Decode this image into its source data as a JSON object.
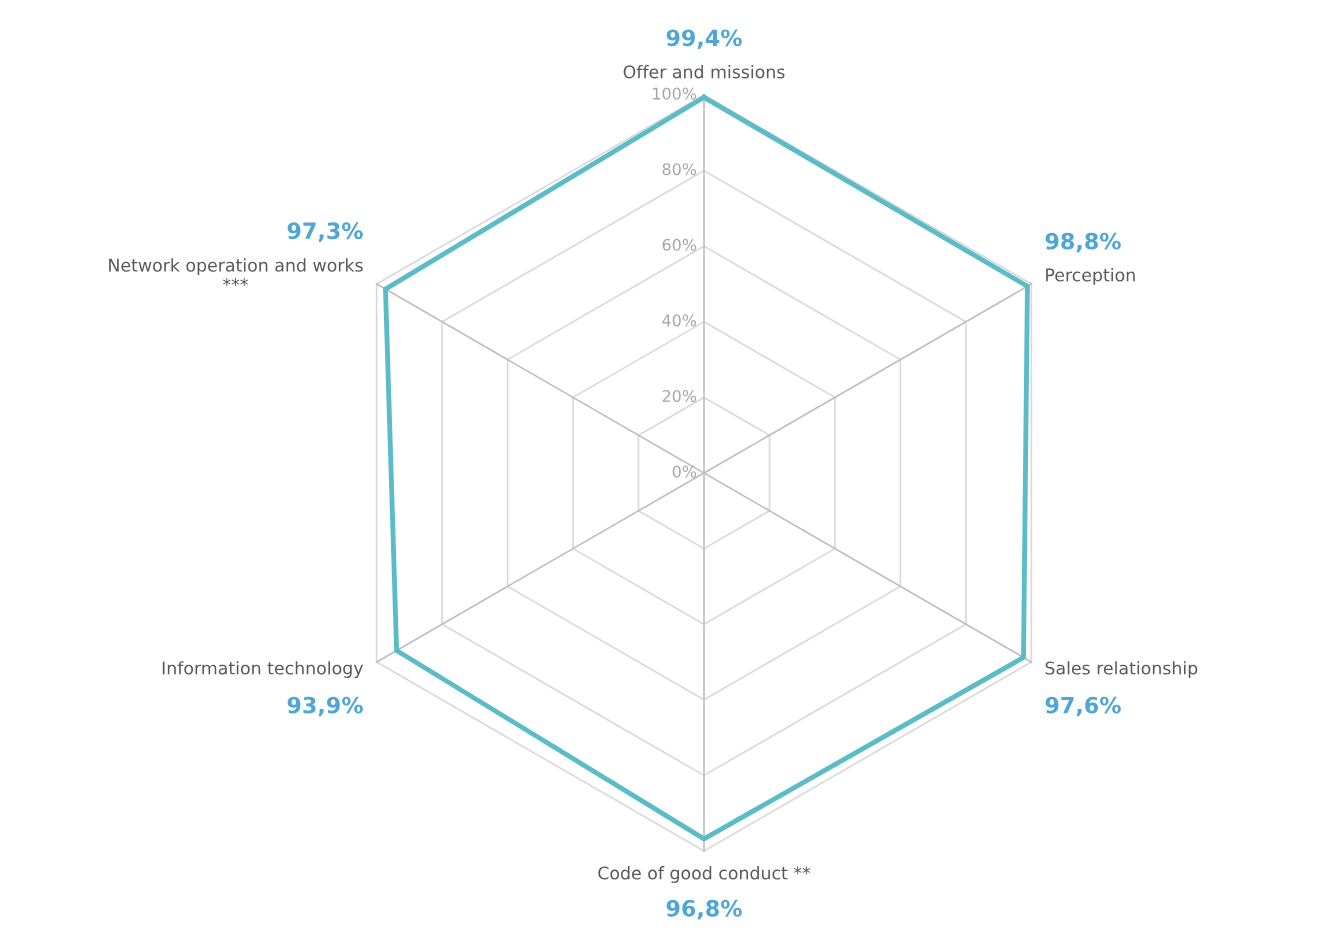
{
  "chart_data": {
    "type": "radar",
    "categories": [
      "Offer and missions",
      "Perception",
      "Sales relationship",
      "Code of good conduct **",
      "Information technology",
      "Network operation and works\n***"
    ],
    "series": [
      {
        "color": "#5bbcc8",
        "values": [
          99.4,
          98.8,
          97.6,
          96.8,
          93.9,
          97.3
        ],
        "value_labels": [
          "99,4%",
          "98,8%",
          "97,6%",
          "96,8%",
          "93,9%",
          "97,3%"
        ]
      }
    ],
    "ylim": [
      0,
      100
    ],
    "yticks": [
      {
        "value": 0,
        "label": "0%"
      },
      {
        "value": 20,
        "label": "20%"
      },
      {
        "value": 40,
        "label": "40%"
      },
      {
        "value": 60,
        "label": "60%"
      },
      {
        "value": 80,
        "label": "80%"
      },
      {
        "value": 100,
        "label": "100%"
      }
    ],
    "grid": true
  }
}
